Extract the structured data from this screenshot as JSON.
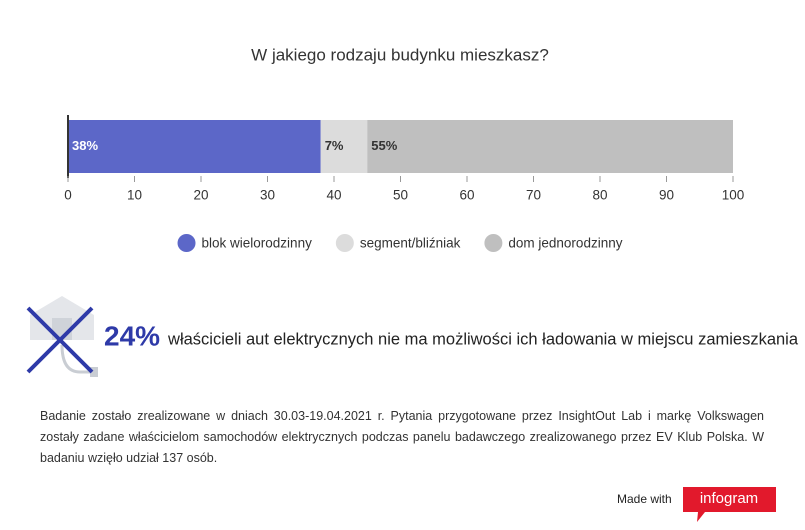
{
  "chart_data": {
    "type": "bar",
    "orientation": "horizontal",
    "stacked": true,
    "title": "W jakiego rodzaju budynku mieszkasz?",
    "series": [
      {
        "name": "blok wielorodzinny",
        "color": "#5c67c8",
        "label_color": "#ffffff",
        "values": [
          38
        ],
        "value_labels": [
          "38%"
        ]
      },
      {
        "name": "segment/bliźniak",
        "color": "#dcdcdc",
        "label_color": "#333333",
        "values": [
          7
        ],
        "value_labels": [
          "7%"
        ]
      },
      {
        "name": "dom jednorodzinny",
        "color": "#bfbfbf",
        "label_color": "#333333",
        "values": [
          55
        ],
        "value_labels": [
          "55%"
        ]
      }
    ],
    "xlim": [
      0,
      100
    ],
    "xticks": [
      0,
      10,
      20,
      30,
      40,
      50,
      60,
      70,
      80,
      90,
      100
    ],
    "legend": "bottom"
  },
  "callout": {
    "figure": "24%",
    "text": "właścicieli aut elektrycznych nie ma możliwości ich ładowania w miejscu zamieszkania"
  },
  "footnote": "Badanie zostało zrealizowane w dniach 30.03-19.04.2021 r. Pytania przygotowane przez InsightOut Lab i markę Volkswagen zostały zadane właścicielom samochodów elektrycznych podczas panelu badawczego zrealizowanego przez EV Klub Polska. W badaniu wzięło udział 137 osób.",
  "badge": {
    "prefix": "Made with",
    "brand": "infogram"
  }
}
